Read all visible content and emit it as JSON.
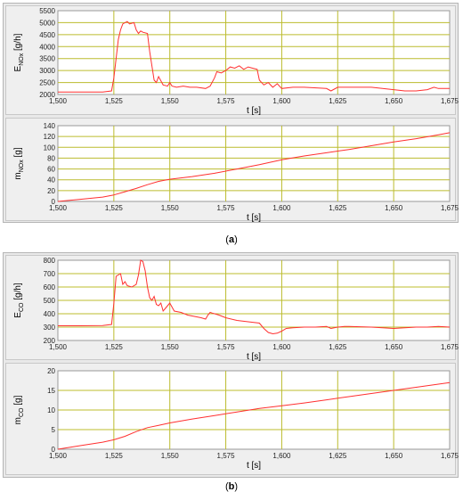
{
  "captions": {
    "a": "a",
    "b": "b"
  },
  "chart_data": [
    {
      "type": "line",
      "panel": "a-top",
      "ylabel_main": "E",
      "ylabel_sub": "NOx",
      "ylabel_unit": " [g/h]",
      "xlabel": "t [s]",
      "xlim": [
        1500,
        1675
      ],
      "ylim": [
        2000,
        5500
      ],
      "xticks": [
        "1,500",
        "1,525",
        "1,550",
        "1,575",
        "1,600",
        "1,625",
        "1,650",
        "1,675"
      ],
      "yticks": [
        "2000",
        "2500",
        "3000",
        "3500",
        "4000",
        "4500",
        "5000",
        "5500"
      ],
      "x": [
        1500,
        1510,
        1520,
        1524,
        1525,
        1527,
        1528,
        1529,
        1531,
        1532,
        1534,
        1535,
        1536,
        1537,
        1538,
        1540,
        1541,
        1542,
        1543,
        1544,
        1545,
        1547,
        1549,
        1550,
        1551,
        1553,
        1556,
        1559,
        1562,
        1566,
        1568,
        1570,
        1571,
        1573,
        1575,
        1577,
        1579,
        1581,
        1583,
        1585,
        1587,
        1589,
        1590,
        1592,
        1594,
        1596,
        1598,
        1600,
        1605,
        1610,
        1620,
        1622,
        1625,
        1628,
        1630,
        1640,
        1645,
        1650,
        1655,
        1660,
        1665,
        1668,
        1670,
        1675
      ],
      "y": [
        2100,
        2100,
        2100,
        2150,
        2700,
        4300,
        4700,
        4950,
        5050,
        4950,
        5000,
        4700,
        4550,
        4650,
        4600,
        4550,
        3800,
        3200,
        2600,
        2500,
        2750,
        2400,
        2350,
        2500,
        2350,
        2300,
        2350,
        2300,
        2300,
        2250,
        2350,
        2700,
        2950,
        2900,
        3000,
        3150,
        3100,
        3200,
        3050,
        3150,
        3100,
        3050,
        2600,
        2400,
        2500,
        2300,
        2450,
        2250,
        2300,
        2300,
        2250,
        2150,
        2300,
        2300,
        2300,
        2300,
        2250,
        2200,
        2150,
        2150,
        2200,
        2300,
        2250,
        2250
      ],
      "color": "#ff3030"
    },
    {
      "type": "line",
      "panel": "a-bottom",
      "ylabel_main": "m",
      "ylabel_sub": "NOx",
      "ylabel_unit": " [g]",
      "xlabel": "t [s]",
      "xlim": [
        1500,
        1675
      ],
      "ylim": [
        0,
        140
      ],
      "xticks": [
        "1,500",
        "1,525",
        "1,550",
        "1,575",
        "1,600",
        "1,625",
        "1,650",
        "1,675"
      ],
      "yticks": [
        "0",
        "20",
        "40",
        "60",
        "80",
        "100",
        "120",
        "140"
      ],
      "x": [
        1500,
        1510,
        1520,
        1525,
        1530,
        1535,
        1540,
        1545,
        1550,
        1560,
        1570,
        1580,
        1590,
        1600,
        1610,
        1620,
        1630,
        1640,
        1650,
        1660,
        1670,
        1675
      ],
      "y": [
        0,
        4,
        8,
        12,
        18,
        24,
        31,
        37,
        41,
        46,
        52,
        60,
        68,
        77,
        84,
        90,
        96,
        103,
        110,
        116,
        123,
        127
      ],
      "color": "#ff3030"
    },
    {
      "type": "line",
      "panel": "b-top",
      "ylabel_main": "E",
      "ylabel_sub": "CO",
      "ylabel_unit": " [g/h]",
      "xlabel": "t [s]",
      "xlim": [
        1500,
        1675
      ],
      "ylim": [
        200,
        800
      ],
      "xticks": [
        "1,500",
        "1,525",
        "1,550",
        "1,575",
        "1,600",
        "1,625",
        "1,650",
        "1,675"
      ],
      "yticks": [
        "200",
        "300",
        "400",
        "500",
        "600",
        "700",
        "800"
      ],
      "x": [
        1500,
        1510,
        1520,
        1524,
        1525,
        1526,
        1527,
        1528,
        1529,
        1530,
        1531,
        1533,
        1535,
        1536,
        1537,
        1538,
        1539,
        1540,
        1541,
        1542,
        1543,
        1544,
        1545,
        1546,
        1547,
        1548,
        1549,
        1550,
        1552,
        1555,
        1558,
        1561,
        1564,
        1566,
        1567,
        1568,
        1569,
        1570,
        1572,
        1575,
        1580,
        1585,
        1590,
        1592,
        1594,
        1596,
        1598,
        1600,
        1602,
        1605,
        1610,
        1615,
        1620,
        1622,
        1625,
        1628,
        1630,
        1640,
        1645,
        1650,
        1655,
        1660,
        1665,
        1670,
        1675
      ],
      "y": [
        310,
        310,
        312,
        320,
        480,
        680,
        690,
        700,
        620,
        640,
        610,
        600,
        620,
        690,
        800,
        790,
        720,
        600,
        520,
        500,
        530,
        470,
        460,
        480,
        420,
        440,
        460,
        480,
        420,
        410,
        390,
        380,
        370,
        360,
        390,
        410,
        405,
        400,
        390,
        370,
        350,
        340,
        330,
        290,
        260,
        250,
        255,
        270,
        290,
        295,
        300,
        300,
        305,
        290,
        300,
        305,
        305,
        300,
        295,
        290,
        295,
        300,
        300,
        305,
        300
      ],
      "color": "#ff3030"
    },
    {
      "type": "line",
      "panel": "b-bottom",
      "ylabel_main": "m",
      "ylabel_sub": "CO",
      "ylabel_unit": " [g]",
      "xlabel": "t [s]",
      "xlim": [
        1500,
        1675
      ],
      "ylim": [
        0,
        20
      ],
      "xticks": [
        "1,500",
        "1,525",
        "1,550",
        "1,575",
        "1,600",
        "1,625",
        "1,650",
        "1,675"
      ],
      "yticks": [
        "0",
        "5",
        "10",
        "15",
        "20"
      ],
      "x": [
        1500,
        1510,
        1520,
        1525,
        1530,
        1535,
        1540,
        1545,
        1550,
        1560,
        1570,
        1580,
        1590,
        1600,
        1610,
        1620,
        1630,
        1640,
        1650,
        1660,
        1670,
        1675
      ],
      "y": [
        0,
        0.9,
        1.8,
        2.4,
        3.3,
        4.5,
        5.5,
        6.1,
        6.7,
        7.7,
        8.6,
        9.5,
        10.4,
        11.1,
        11.8,
        12.6,
        13.4,
        14.2,
        15.0,
        15.8,
        16.6,
        17.0
      ],
      "color": "#ff3030"
    }
  ]
}
